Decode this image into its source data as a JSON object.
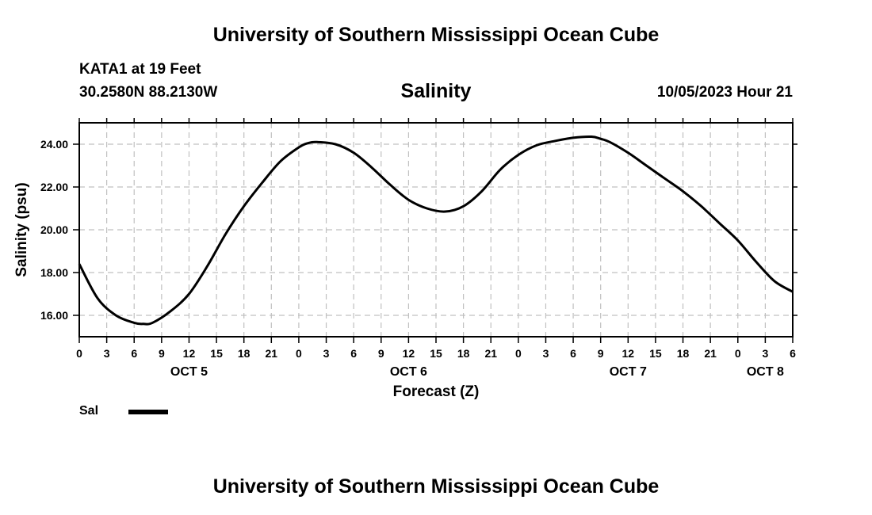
{
  "header": {
    "title_top": "University of Southern Mississippi Ocean Cube",
    "title_bottom": "University of Southern Mississippi Ocean Cube",
    "station": "KATA1 at 19 Feet",
    "coords": "30.2580N  88.2130W",
    "datetime": "10/05/2023 Hour 21"
  },
  "legend": {
    "label": "Sal",
    "color": "#000000"
  },
  "chart_data": {
    "type": "line",
    "title": "Salinity",
    "xlabel": "Forecast (Z)",
    "ylabel": "Salinity (psu)",
    "ylim": [
      15,
      25
    ],
    "xlim": [
      0,
      78
    ],
    "yticks": [
      16,
      18,
      20,
      22,
      24
    ],
    "ytick_labels": [
      "16.00",
      "18.00",
      "20.00",
      "22.00",
      "24.00"
    ],
    "xtick_labels": [
      "0",
      "3",
      "6",
      "9",
      "12",
      "15",
      "18",
      "21",
      "0",
      "3",
      "6",
      "9",
      "12",
      "15",
      "18",
      "21",
      "0",
      "3",
      "6",
      "9",
      "12",
      "15",
      "18",
      "21",
      "0",
      "3",
      "6"
    ],
    "day_labels": [
      {
        "label": "OCT 5",
        "x": 12
      },
      {
        "label": "OCT 6",
        "x": 36
      },
      {
        "label": "OCT 7",
        "x": 60
      },
      {
        "label": "OCT 8",
        "x": 75
      }
    ],
    "grid": true,
    "series": [
      {
        "name": "Sal",
        "x": [
          0,
          2,
          4,
          6,
          7,
          8,
          10,
          12,
          14,
          16,
          18,
          20,
          22,
          24,
          25,
          26,
          28,
          30,
          32,
          34,
          36,
          38,
          40,
          42,
          44,
          46,
          48,
          50,
          52,
          54,
          56,
          57,
          58,
          60,
          62,
          64,
          66,
          68,
          70,
          72,
          74,
          76,
          78
        ],
        "values": [
          18.4,
          16.8,
          16.0,
          15.65,
          15.6,
          15.65,
          16.2,
          17.0,
          18.3,
          19.8,
          21.1,
          22.2,
          23.2,
          23.85,
          24.05,
          24.1,
          24.0,
          23.6,
          22.9,
          22.1,
          21.4,
          21.0,
          20.85,
          21.1,
          21.8,
          22.8,
          23.5,
          23.95,
          24.15,
          24.3,
          24.35,
          24.25,
          24.1,
          23.6,
          23.0,
          22.4,
          21.8,
          21.1,
          20.3,
          19.5,
          18.5,
          17.6,
          17.1
        ],
        "color": "#000000"
      }
    ]
  }
}
